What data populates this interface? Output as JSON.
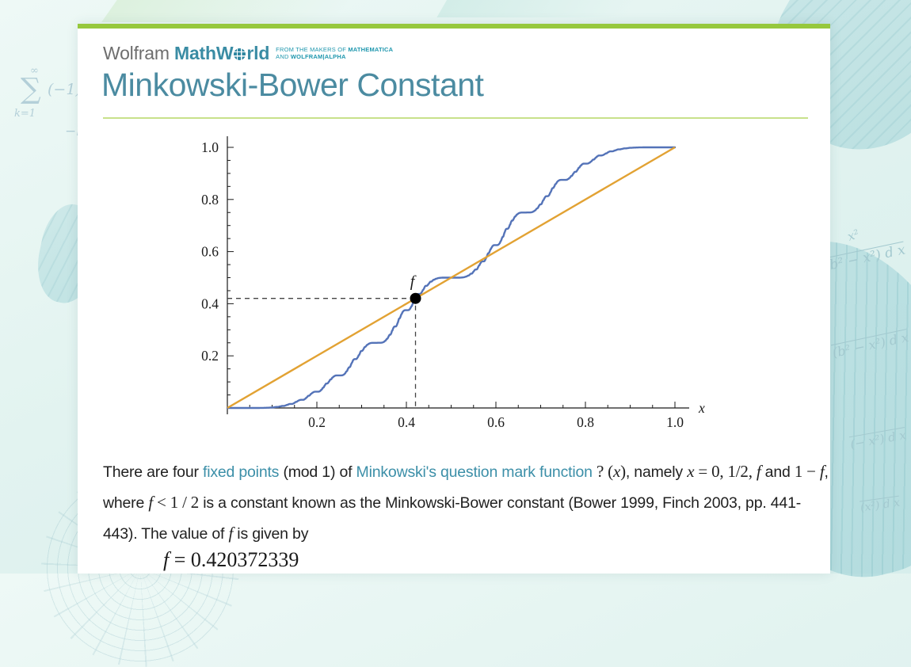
{
  "header": {
    "logo": {
      "wolfram": "Wolfram",
      "mathworld_pre": "MathW",
      "mathworld_post": "rld",
      "globe_icon": "globe",
      "tagline_1_plain": "FROM THE MAKERS OF ",
      "tagline_1_bold": "MATHEMATICA",
      "tagline_2_plain": "AND ",
      "tagline_2_bold": "WOLFRAM|ALPHA"
    },
    "title": "Minkowski-Bower Constant"
  },
  "article": {
    "paragraph_segments": [
      {
        "t": "There are four ",
        "s": "plain"
      },
      {
        "t": "fixed points",
        "s": "link"
      },
      {
        "t": " (mod 1) of ",
        "s": "plain"
      },
      {
        "t": "Minkowski's question mark function",
        "s": "link"
      },
      {
        "t": " ",
        "s": "plain"
      },
      {
        "t": "? (",
        "s": "math"
      },
      {
        "t": "x",
        "s": "mathit"
      },
      {
        "t": ")",
        "s": "math"
      },
      {
        "t": ", namely ",
        "s": "plain"
      },
      {
        "t": "x",
        "s": "mathit"
      },
      {
        "t": " = 0, 1/2, ",
        "s": "math"
      },
      {
        "t": "f",
        "s": "mathit"
      },
      {
        "t": " and ",
        "s": "plain"
      },
      {
        "t": "1 − ",
        "s": "math"
      },
      {
        "t": "f",
        "s": "mathit"
      },
      {
        "t": ", where ",
        "s": "plain"
      },
      {
        "t": "f",
        "s": "mathit"
      },
      {
        "t": " < 1 / 2",
        "s": "math"
      },
      {
        "t": " is a constant known as the Minkowski-Bower constant (Bower 1999, Finch 2003, pp. 441-443). The value of ",
        "s": "plain"
      },
      {
        "t": "f",
        "s": "mathit"
      },
      {
        "t": " is given by",
        "s": "plain"
      }
    ],
    "equation_segments": [
      {
        "t": "f",
        "s": "mathit"
      },
      {
        "t": " = 0.420372339",
        "s": "math"
      }
    ]
  },
  "chart_data": {
    "type": "line",
    "title": "",
    "xlabel": "x",
    "ylabel": "",
    "xlim": [
      0,
      1.05
    ],
    "ylim": [
      0,
      1.05
    ],
    "grid": false,
    "major_tick_step": 0.2,
    "minor_tick_step": 0.05,
    "x_tick_labels": [
      "0.2",
      "0.4",
      "0.6",
      "0.8",
      "1.0"
    ],
    "y_tick_labels": [
      "0.2",
      "0.4",
      "0.6",
      "0.8",
      "1.0"
    ],
    "series": [
      {
        "name": "Minkowski question mark function ?(x)",
        "fn": "minkowski_question_mark",
        "color": "#5473b8",
        "stroke_width": 2.4,
        "key_points": [
          [
            0,
            0
          ],
          [
            0.2,
            0.0625
          ],
          [
            0.25,
            0.125
          ],
          [
            0.3333,
            0.25
          ],
          [
            0.4,
            0.375
          ],
          [
            0.420372339,
            0.420372339
          ],
          [
            0.5,
            0.5
          ],
          [
            0.6,
            0.625
          ],
          [
            0.6667,
            0.75
          ],
          [
            0.75,
            0.875
          ],
          [
            0.8,
            0.9375
          ],
          [
            1.0,
            1.0
          ]
        ]
      },
      {
        "name": "y = x",
        "fn": "identity",
        "color": "#e2a233",
        "stroke_width": 2.4,
        "key_points": [
          [
            0,
            0
          ],
          [
            1,
            1
          ]
        ]
      }
    ],
    "fixed_point": {
      "x": 0.420372339,
      "y": 0.420372339,
      "label": "f",
      "marker": "filled-black-circle",
      "guide_style": "dashed"
    }
  },
  "background": {
    "formula_sum_top": "∞",
    "formula_sum_sigma": "∑",
    "formula_sum_body": "(−1)ᵏ⁻¹",
    "formula_sum_bottom": "k=1",
    "formula_ln": "−ln",
    "formulas_right": [
      "x²",
      "(b² − x²)  d x",
      "(b² − x²)  d x",
      "(− x²)  d x",
      "(x²)  d x"
    ]
  },
  "colors": {
    "accent_green": "#96c83d",
    "rule_green": "#c8e18b",
    "title_teal": "#4b8ba1",
    "logo_gray": "#6e6e6e",
    "logo_teal": "#3a8ca4",
    "tagline_teal": "#1f97ae",
    "link_teal": "#3c8fa8",
    "curve_blue": "#5473b8",
    "line_orange": "#e2a233",
    "body_text": "#212121"
  }
}
